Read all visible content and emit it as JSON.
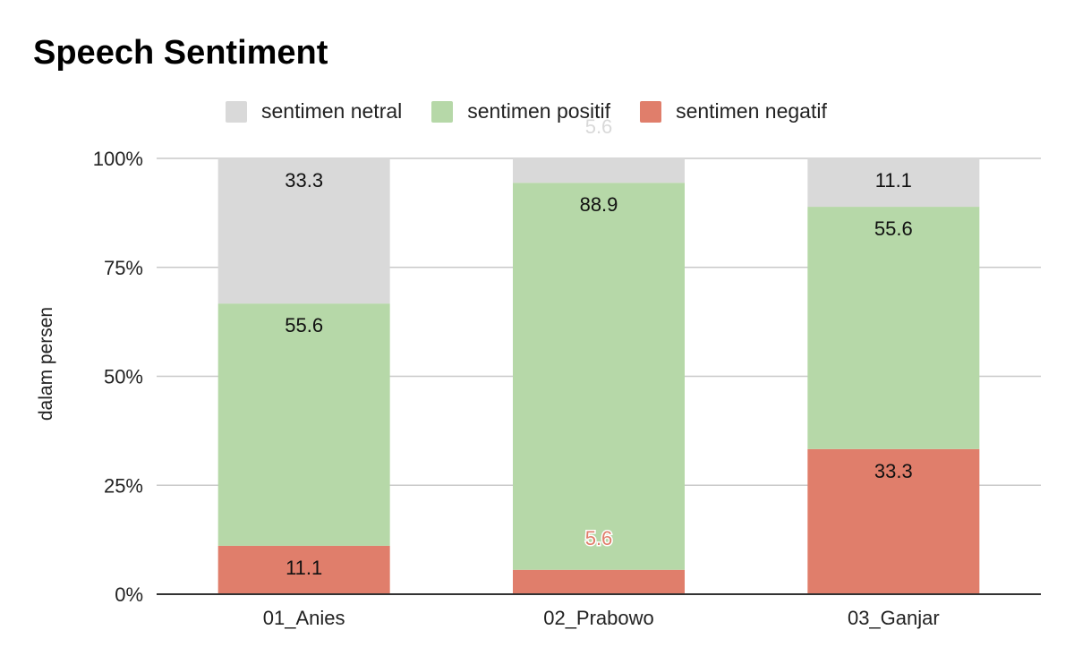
{
  "chart_data": {
    "type": "bar",
    "stacked": "percent",
    "title": "Speech Sentiment",
    "xlabel": "",
    "ylabel": "dalam persen",
    "categories": [
      "01_Anies",
      "02_Prabowo",
      "03_Ganjar"
    ],
    "ylim": [
      0,
      100
    ],
    "yticks": [
      "0%",
      "25%",
      "50%",
      "75%",
      "100%"
    ],
    "grid": true,
    "legend_position": "top",
    "series": [
      {
        "name": "sentimen negatif",
        "color": "#e07e6b",
        "values": [
          11.1,
          5.6,
          33.3
        ],
        "labels": [
          "11.1",
          "5.6",
          "33.3"
        ]
      },
      {
        "name": "sentimen positif",
        "color": "#b6d8a8",
        "values": [
          55.6,
          88.9,
          55.6
        ],
        "labels": [
          "55.6",
          "88.9",
          "55.6"
        ]
      },
      {
        "name": "sentimen netral",
        "color": "#d9d9d9",
        "values": [
          33.3,
          5.6,
          11.1
        ],
        "labels": [
          "33.3",
          "5.6",
          "11.1"
        ]
      }
    ],
    "legend_order": [
      "sentimen netral",
      "sentimen positif",
      "sentimen negatif"
    ]
  }
}
